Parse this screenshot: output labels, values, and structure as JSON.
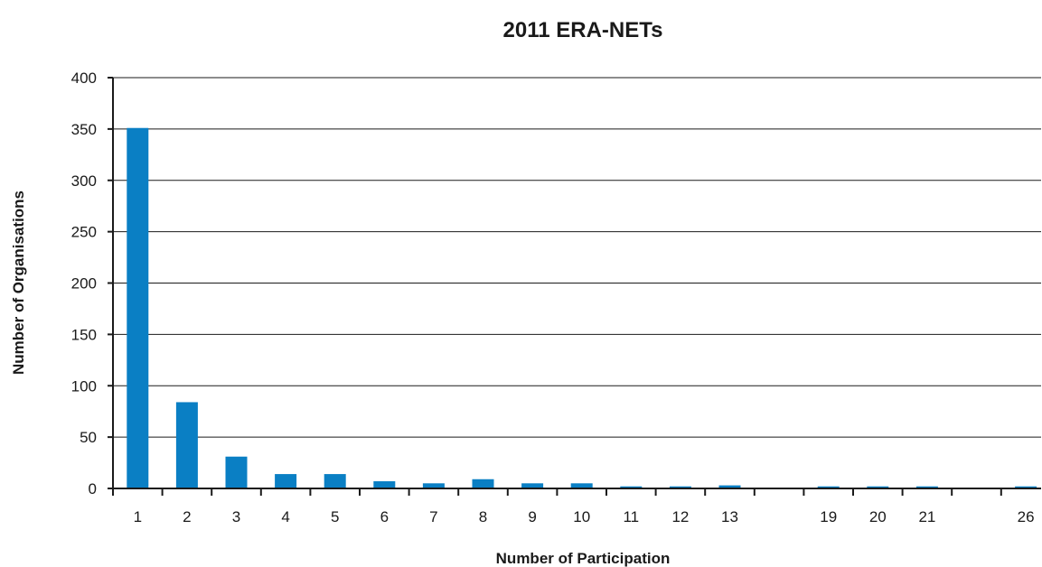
{
  "chart_data": {
    "type": "bar",
    "title": "2011 ERA-NETs",
    "xlabel": "Number of Participation",
    "ylabel": "Number of Organisations",
    "categories": [
      "1",
      "2",
      "3",
      "4",
      "5",
      "6",
      "7",
      "8",
      "9",
      "10",
      "11",
      "12",
      "13",
      "",
      "19",
      "20",
      "21",
      "",
      "26"
    ],
    "values": [
      351,
      84,
      31,
      14,
      14,
      7,
      5,
      9,
      5,
      5,
      2,
      2,
      3,
      null,
      2,
      2,
      2,
      null,
      2
    ],
    "ylim": [
      0,
      400
    ],
    "yticks": [
      0,
      50,
      100,
      150,
      200,
      250,
      300,
      350,
      400
    ],
    "grid": true,
    "legend": "none",
    "bar_color": "#0a7fc4"
  }
}
